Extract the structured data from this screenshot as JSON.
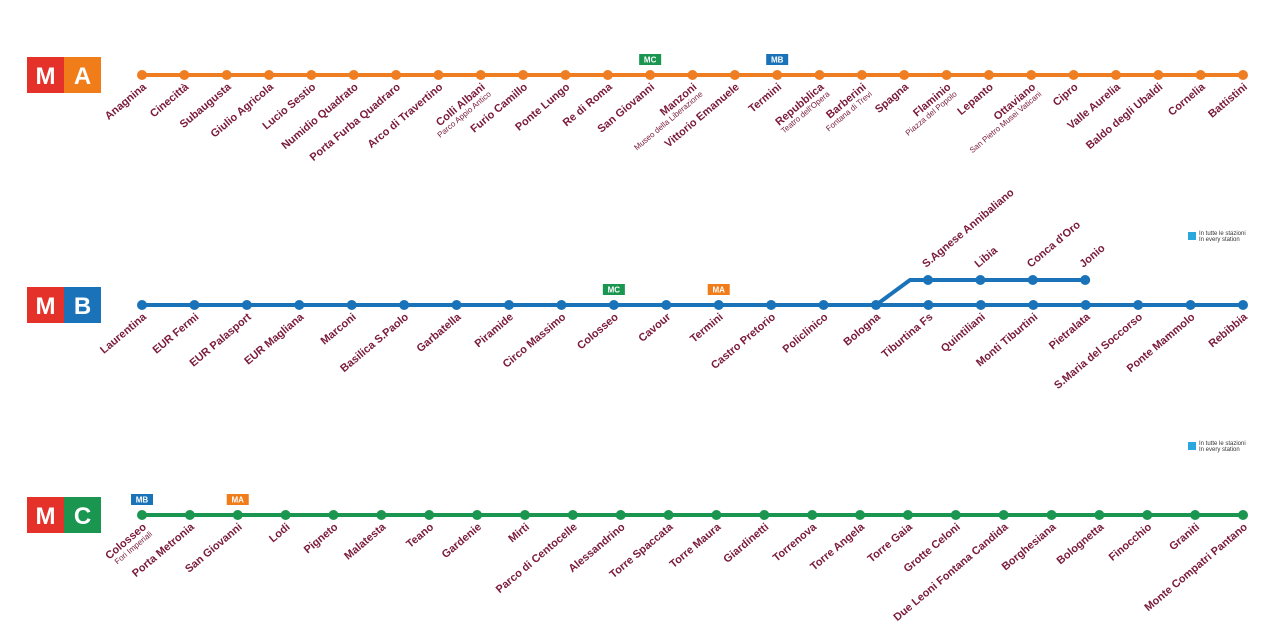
{
  "lines": [
    {
      "badge_logo": "M",
      "badge": "A",
      "color": "#ef7d22",
      "badge_color": "#f07d1a",
      "stations": [
        {
          "name": "Anagnina"
        },
        {
          "name": "Cinecittà"
        },
        {
          "name": "Subaugusta"
        },
        {
          "name": "Giulio Agricola"
        },
        {
          "name": "Lucio Sestio"
        },
        {
          "name": "Numidio Quadrato"
        },
        {
          "name": "Porta Furba Quadraro"
        },
        {
          "name": "Arco di Travertino"
        },
        {
          "name": "Colli Albani",
          "sub": "Parco Appio Antico"
        },
        {
          "name": "Furio Camillo"
        },
        {
          "name": "Ponte Lungo"
        },
        {
          "name": "Re di Roma"
        },
        {
          "name": "San Giovanni",
          "transfer": "MC"
        },
        {
          "name": "Manzoni",
          "sub": "Museo della Liberazione"
        },
        {
          "name": "Vittorio Emanuele"
        },
        {
          "name": "Termini",
          "transfer": "MB"
        },
        {
          "name": "Repubblica",
          "sub": "Teatro dell'Opera"
        },
        {
          "name": "Barberini",
          "sub": "Fontana di Trevi"
        },
        {
          "name": "Spagna"
        },
        {
          "name": "Flaminio",
          "sub": "Piazza del Popolo"
        },
        {
          "name": "Lepanto"
        },
        {
          "name": "Ottaviano",
          "sub": "San Pietro Musei Vaticani"
        },
        {
          "name": "Cipro"
        },
        {
          "name": "Valle Aurelia"
        },
        {
          "name": "Baldo degli Ubaldi"
        },
        {
          "name": "Cornelia"
        },
        {
          "name": "Battistini"
        }
      ]
    },
    {
      "badge_logo": "M",
      "badge": "B",
      "color": "#1a73b8",
      "badge_color": "#1a73b8",
      "note": {
        "line1": "In tutte le stazioni",
        "line2": "In every station"
      },
      "stations": [
        {
          "name": "Laurentina"
        },
        {
          "name": "EUR Fermi"
        },
        {
          "name": "EUR Palasport"
        },
        {
          "name": "EUR Magliana"
        },
        {
          "name": "Marconi"
        },
        {
          "name": "Basilica S.Paolo"
        },
        {
          "name": "Garbatella"
        },
        {
          "name": "Piramide"
        },
        {
          "name": "Circo Massimo"
        },
        {
          "name": "Colosseo",
          "transfer": "MC"
        },
        {
          "name": "Cavour"
        },
        {
          "name": "Termini",
          "transfer": "MA"
        },
        {
          "name": "Castro Pretorio"
        },
        {
          "name": "Policlinico"
        },
        {
          "name": "Bologna"
        },
        {
          "name": "Tiburtina Fs"
        },
        {
          "name": "Quintiliani"
        },
        {
          "name": "Monti Tiburtini"
        },
        {
          "name": "Pietralata"
        },
        {
          "name": "S.Maria del Soccorso"
        },
        {
          "name": "Ponte Mammolo"
        },
        {
          "name": "Rebibbia"
        }
      ],
      "branch": [
        {
          "name": "S.Agnese Annibaliano"
        },
        {
          "name": "Libia"
        },
        {
          "name": "Conca d'Oro"
        },
        {
          "name": "Jonio"
        }
      ]
    },
    {
      "badge_logo": "M",
      "badge": "C",
      "color": "#1a9650",
      "badge_color": "#1a9650",
      "note": {
        "line1": "In tutte le stazioni",
        "line2": "In every station"
      },
      "stations": [
        {
          "name": "Colosseo",
          "sub": "Fori Imperiali",
          "transfer": "MB"
        },
        {
          "name": "Porta Metronia"
        },
        {
          "name": "San Giovanni",
          "transfer": "MA"
        },
        {
          "name": "Lodi"
        },
        {
          "name": "Pigneto"
        },
        {
          "name": "Malatesta"
        },
        {
          "name": "Teano"
        },
        {
          "name": "Gardenie"
        },
        {
          "name": "Mirti"
        },
        {
          "name": "Parco di Centocelle"
        },
        {
          "name": "Alessandrino"
        },
        {
          "name": "Torre Spaccata"
        },
        {
          "name": "Torre Maura"
        },
        {
          "name": "Giardinetti"
        },
        {
          "name": "Torrenova"
        },
        {
          "name": "Torre Angela"
        },
        {
          "name": "Torre Gaia"
        },
        {
          "name": "Grotte Celoni"
        },
        {
          "name": "Due Leoni Fontana Candida"
        },
        {
          "name": "Borghesiana"
        },
        {
          "name": "Bolognetta"
        },
        {
          "name": "Finocchio"
        },
        {
          "name": "Graniti"
        },
        {
          "name": "Monte Compatri Pantano"
        }
      ]
    }
  ]
}
